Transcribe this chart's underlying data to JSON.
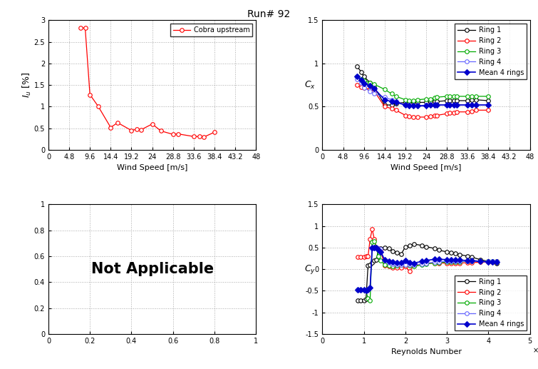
{
  "title": "Run# 92",
  "turb_wind_speed": [
    7.5,
    8.5,
    9.6,
    11.5,
    14.4,
    16.0,
    19.2,
    20.5,
    21.5,
    24.0,
    26.0,
    28.8,
    30.0,
    33.6,
    35.0,
    36.0,
    38.4
  ],
  "turb_intensity": [
    2.83,
    2.82,
    1.28,
    1.01,
    0.52,
    0.63,
    0.45,
    0.48,
    0.47,
    0.6,
    0.44,
    0.36,
    0.37,
    0.31,
    0.31,
    0.3,
    0.41
  ],
  "cx_wind_speed": [
    8.0,
    9.0,
    9.6,
    11.0,
    12.0,
    14.4,
    16.0,
    17.0,
    19.2,
    20.0,
    21.0,
    22.0,
    24.0,
    25.0,
    26.0,
    26.5,
    28.8,
    29.5,
    30.5,
    31.0,
    33.6,
    34.5,
    35.5,
    38.4
  ],
  "cx_ring1": [
    0.97,
    0.9,
    0.85,
    0.78,
    0.73,
    0.52,
    0.52,
    0.54,
    0.55,
    0.55,
    0.55,
    0.55,
    0.55,
    0.56,
    0.56,
    0.56,
    0.57,
    0.57,
    0.57,
    0.57,
    0.57,
    0.58,
    0.58,
    0.57
  ],
  "cx_ring2": [
    0.75,
    0.73,
    0.72,
    0.7,
    0.68,
    0.5,
    0.48,
    0.46,
    0.4,
    0.39,
    0.38,
    0.38,
    0.38,
    0.39,
    0.4,
    0.4,
    0.42,
    0.43,
    0.43,
    0.44,
    0.44,
    0.45,
    0.46,
    0.46
  ],
  "cx_ring3": [
    0.85,
    0.82,
    0.8,
    0.78,
    0.76,
    0.7,
    0.65,
    0.62,
    0.58,
    0.57,
    0.57,
    0.58,
    0.59,
    0.59,
    0.6,
    0.61,
    0.62,
    0.62,
    0.62,
    0.62,
    0.62,
    0.62,
    0.62,
    0.62
  ],
  "cx_ring4": [
    0.82,
    0.78,
    0.72,
    0.68,
    0.65,
    0.61,
    0.58,
    0.56,
    0.52,
    0.52,
    0.51,
    0.51,
    0.52,
    0.52,
    0.52,
    0.52,
    0.52,
    0.52,
    0.52,
    0.52,
    0.52,
    0.52,
    0.52,
    0.52
  ],
  "cx_mean": [
    0.85,
    0.81,
    0.77,
    0.74,
    0.71,
    0.58,
    0.56,
    0.55,
    0.52,
    0.51,
    0.51,
    0.51,
    0.51,
    0.52,
    0.52,
    0.52,
    0.52,
    0.52,
    0.52,
    0.52,
    0.52,
    0.52,
    0.52,
    0.52
  ],
  "cy_re": [
    85000.0,
    92000.0,
    100000.0,
    105000.0,
    110000.0,
    115000.0,
    120000.0,
    125000.0,
    130000.0,
    135000.0,
    140000.0,
    150000.0,
    160000.0,
    170000.0,
    180000.0,
    190000.0,
    200000.0,
    210000.0,
    220000.0,
    240000.0,
    250000.0,
    270000.0,
    280000.0,
    300000.0,
    310000.0,
    320000.0,
    330000.0,
    350000.0,
    360000.0,
    380000.0,
    400000.0,
    410000.0,
    420000.0
  ],
  "cy_ring1": [
    -0.72,
    -0.73,
    -0.72,
    -0.7,
    0.08,
    0.1,
    0.15,
    0.2,
    0.22,
    0.44,
    0.48,
    0.5,
    0.48,
    0.42,
    0.38,
    0.35,
    0.52,
    0.55,
    0.58,
    0.55,
    0.52,
    0.48,
    0.44,
    0.4,
    0.38,
    0.36,
    0.34,
    0.3,
    0.28,
    0.22,
    0.18,
    0.16,
    0.14
  ],
  "cy_ring2": [
    0.28,
    0.28,
    0.28,
    0.3,
    0.3,
    0.7,
    0.92,
    0.7,
    0.5,
    0.48,
    0.45,
    0.08,
    0.06,
    0.04,
    0.04,
    0.04,
    0.06,
    -0.05,
    0.08,
    0.12,
    0.14,
    0.14,
    0.14,
    0.14,
    0.14,
    0.14,
    0.14,
    0.15,
    0.15,
    0.16,
    0.17,
    0.17,
    0.18
  ],
  "cy_ring3": [
    -0.48,
    -0.48,
    -0.48,
    -0.5,
    -0.68,
    -0.72,
    0.63,
    0.65,
    0.5,
    0.3,
    0.2,
    0.1,
    0.08,
    0.06,
    0.08,
    0.1,
    0.1,
    0.08,
    0.06,
    0.1,
    0.12,
    0.14,
    0.15,
    0.16,
    0.17,
    0.17,
    0.17,
    0.18,
    0.18,
    0.18,
    0.18,
    0.18,
    0.18
  ],
  "cy_ring4": [
    -0.48,
    -0.48,
    -0.48,
    -0.5,
    -0.48,
    -0.42,
    0.48,
    0.5,
    0.5,
    0.48,
    0.46,
    0.2,
    0.15,
    0.12,
    0.1,
    0.1,
    0.1,
    0.1,
    0.1,
    0.12,
    0.14,
    0.16,
    0.17,
    0.18,
    0.18,
    0.18,
    0.18,
    0.18,
    0.18,
    0.18,
    0.18,
    0.18,
    0.18
  ],
  "cy_mean": [
    -0.48,
    -0.48,
    -0.48,
    -0.5,
    -0.48,
    -0.42,
    0.49,
    0.5,
    0.5,
    0.45,
    0.4,
    0.22,
    0.19,
    0.16,
    0.15,
    0.15,
    0.2,
    0.15,
    0.14,
    0.18,
    0.2,
    0.23,
    0.23,
    0.22,
    0.22,
    0.21,
    0.21,
    0.2,
    0.2,
    0.18,
    0.17,
    0.17,
    0.17
  ],
  "color_ring1": "#000000",
  "color_ring2": "#ff0000",
  "color_ring3": "#00aa00",
  "color_ring4": "#6666ff",
  "color_mean": "#0000cc",
  "color_turb": "#ff0000",
  "xticks_wind": [
    0,
    4.8,
    9.6,
    14.4,
    19.2,
    24.0,
    28.8,
    33.6,
    38.4,
    43.2,
    48
  ],
  "xtick_labels_wind": [
    "0",
    "4.8",
    "9.6",
    "14.4",
    "19.2",
    "24",
    "28.8",
    "33.6",
    "38.4",
    "43.2",
    "48"
  ],
  "xticks_re": [
    0,
    100000.0,
    200000.0,
    300000.0,
    400000.0,
    500000.0
  ],
  "xtick_labels_re": [
    "0",
    "1",
    "2",
    "3",
    "4",
    "5"
  ]
}
